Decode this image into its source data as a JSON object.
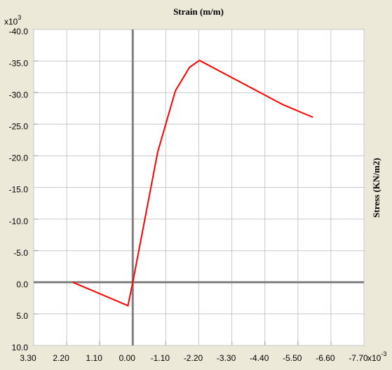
{
  "chart_data": {
    "type": "line",
    "title": "Strain   (m/m)",
    "y_label": "Stress    (KN/m2)",
    "y_multiplier": {
      "base": "x10",
      "exp": "3"
    },
    "x_multiplier": {
      "base": "x10",
      "exp": "-3"
    },
    "x": [
      2.0,
      0.16,
      0.0,
      -0.83,
      -1.42,
      -1.89,
      -2.22,
      -5.0,
      -6.0
    ],
    "values": [
      0.0,
      3.7,
      0.0,
      -20.6,
      -30.3,
      -34.0,
      -35.1,
      -28.1,
      -26.1
    ],
    "color": "#ff0000",
    "xlim": [
      3.3,
      -7.7
    ],
    "xticks": [
      {
        "value": 3.3,
        "label": "3.30"
      },
      {
        "value": 2.2,
        "label": "2.20"
      },
      {
        "value": 1.1,
        "label": "1.10"
      },
      {
        "value": 0,
        "label": "0.00"
      },
      {
        "value": -1.1,
        "label": "-1.10"
      },
      {
        "value": -2.2,
        "label": "-2.20"
      },
      {
        "value": -3.3,
        "label": "-3.30"
      },
      {
        "value": -4.4,
        "label": "-4.40"
      },
      {
        "value": -5.5,
        "label": "-5.50"
      },
      {
        "value": -6.6,
        "label": "-6.60"
      },
      {
        "value": -7.7,
        "label": "-7.70"
      }
    ],
    "ylim": [
      10,
      -40
    ],
    "yticks": [
      {
        "value": -40,
        "label": "-40.0"
      },
      {
        "value": -35,
        "label": "-35.0"
      },
      {
        "value": -30,
        "label": "-30.0"
      },
      {
        "value": -25,
        "label": "-25.0"
      },
      {
        "value": -20,
        "label": "-20.0"
      },
      {
        "value": -15,
        "label": "-15.0"
      },
      {
        "value": -10,
        "label": "-10.0"
      },
      {
        "value": -5,
        "label": "-5.0"
      },
      {
        "value": 0,
        "label": "0.0"
      },
      {
        "value": 5,
        "label": "5.0"
      },
      {
        "value": 10,
        "label": "10.0"
      }
    ],
    "grid": true
  }
}
